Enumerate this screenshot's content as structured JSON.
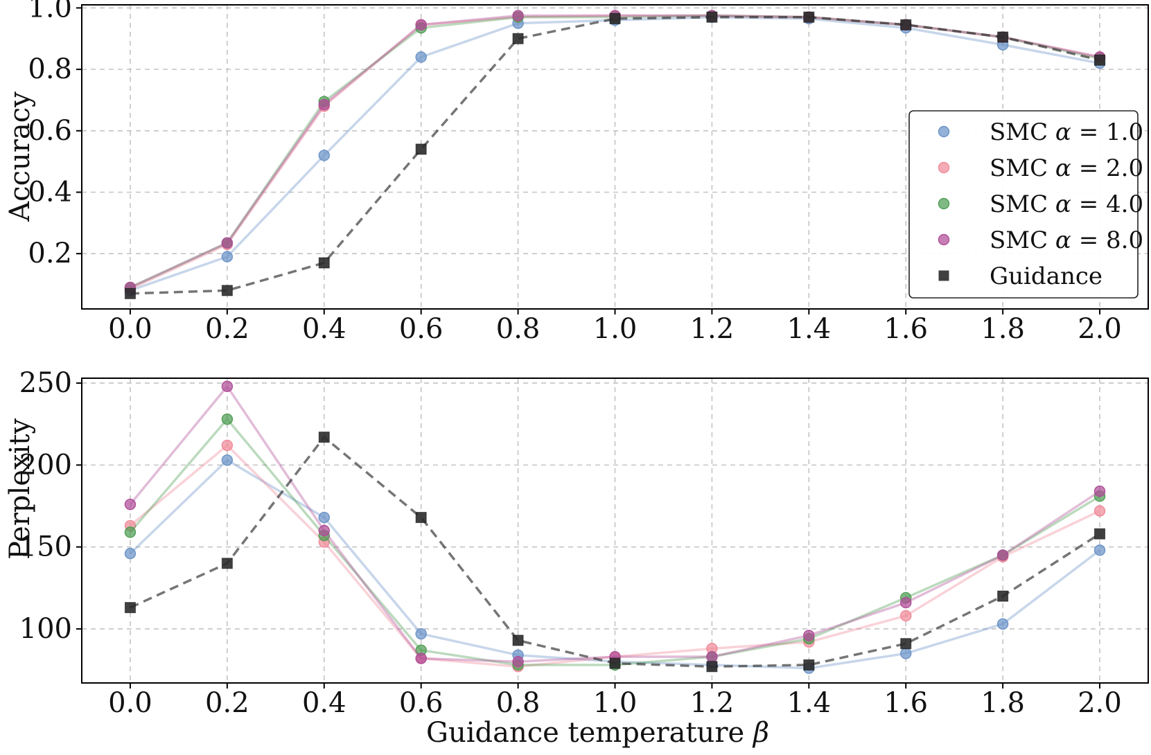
{
  "chart_data": [
    {
      "type": "line",
      "title": "",
      "xlabel": "",
      "ylabel": "Accuracy",
      "x": [
        0.0,
        0.2,
        0.4,
        0.6,
        0.8,
        1.0,
        1.2,
        1.4,
        1.6,
        1.8,
        2.0
      ],
      "x_tick_labels": [
        "0.0",
        "0.2",
        "0.4",
        "0.6",
        "0.8",
        "1.0",
        "1.2",
        "1.4",
        "1.6",
        "1.8",
        "2.0"
      ],
      "xlim": [
        -0.1,
        2.1
      ],
      "ylim": [
        0.02,
        1.01
      ],
      "y_ticks": [
        0.2,
        0.4,
        0.6,
        0.8,
        1.0
      ],
      "y_tick_labels": [
        "0.2",
        "0.4",
        "0.6",
        "0.8",
        "1.0"
      ],
      "grid": true,
      "legend_position": "center-right",
      "series": [
        {
          "name": "SMC α = 1.0",
          "legend_prefix": "SMC",
          "legend_value": "1.0",
          "color": "#6b93c7",
          "marker": "circle",
          "linestyle": "solid",
          "values": [
            0.08,
            0.19,
            0.52,
            0.84,
            0.95,
            0.96,
            0.97,
            0.965,
            0.935,
            0.88,
            0.82
          ]
        },
        {
          "name": "SMC α = 2.0",
          "legend_prefix": "SMC",
          "legend_value": "2.0",
          "color": "#f08a99",
          "marker": "circle",
          "linestyle": "solid",
          "values": [
            0.085,
            0.23,
            0.68,
            0.945,
            0.97,
            0.975,
            0.975,
            0.97,
            0.945,
            0.905,
            0.84
          ]
        },
        {
          "name": "SMC α = 4.0",
          "legend_prefix": "SMC",
          "legend_value": "4.0",
          "color": "#4f9e55",
          "marker": "circle",
          "linestyle": "solid",
          "values": [
            0.09,
            0.235,
            0.695,
            0.935,
            0.97,
            0.97,
            0.975,
            0.97,
            0.945,
            0.905,
            0.835
          ]
        },
        {
          "name": "SMC α = 8.0",
          "legend_prefix": "SMC",
          "legend_value": "8.0",
          "color": "#b04e98",
          "marker": "circle",
          "linestyle": "solid",
          "values": [
            0.09,
            0.235,
            0.685,
            0.945,
            0.975,
            0.975,
            0.975,
            0.97,
            0.945,
            0.905,
            0.84
          ]
        },
        {
          "name": "Guidance",
          "color": "#2b2b2b",
          "marker": "square",
          "linestyle": "dashed",
          "values": [
            0.07,
            0.08,
            0.17,
            0.54,
            0.9,
            0.965,
            0.97,
            0.97,
            0.945,
            0.905,
            0.83
          ]
        }
      ]
    },
    {
      "type": "line",
      "title": "",
      "xlabel": "Guidance temperature β",
      "xlabel_text": "Guidance temperature",
      "xlabel_symbol": "β",
      "ylabel": "Perplexity",
      "x": [
        0.0,
        0.2,
        0.4,
        0.6,
        0.8,
        1.0,
        1.2,
        1.4,
        1.6,
        1.8,
        2.0
      ],
      "x_tick_labels": [
        "0.0",
        "0.2",
        "0.4",
        "0.6",
        "0.8",
        "1.0",
        "1.2",
        "1.4",
        "1.6",
        "1.8",
        "2.0"
      ],
      "xlim": [
        -0.1,
        2.1
      ],
      "ylim": [
        67,
        253
      ],
      "y_ticks": [
        100,
        150,
        200,
        250
      ],
      "y_tick_labels": [
        "100",
        "150",
        "200",
        "250"
      ],
      "grid": true,
      "series": [
        {
          "name": "SMC α = 1.0",
          "color": "#6b93c7",
          "marker": "circle",
          "linestyle": "solid",
          "values": [
            146,
            203,
            168,
            97,
            84,
            80,
            78,
            76,
            85,
            103,
            148
          ]
        },
        {
          "name": "SMC α = 2.0",
          "color": "#f08a99",
          "marker": "circle",
          "linestyle": "solid",
          "values": [
            163,
            212,
            153,
            82,
            77,
            83,
            88,
            92,
            108,
            144,
            172
          ]
        },
        {
          "name": "SMC α = 4.0",
          "color": "#4f9e55",
          "marker": "circle",
          "linestyle": "solid",
          "values": [
            159,
            228,
            157,
            87,
            78,
            78,
            83,
            94,
            119,
            145,
            181
          ]
        },
        {
          "name": "SMC α = 8.0",
          "color": "#b04e98",
          "marker": "circle",
          "linestyle": "solid",
          "values": [
            176,
            248,
            160,
            82,
            80,
            83,
            83,
            96,
            116,
            145,
            184
          ]
        },
        {
          "name": "Guidance",
          "color": "#2b2b2b",
          "marker": "square",
          "linestyle": "dashed",
          "values": [
            113,
            140,
            217,
            168,
            93,
            79,
            77,
            78,
            91,
            120,
            158
          ]
        }
      ]
    }
  ]
}
